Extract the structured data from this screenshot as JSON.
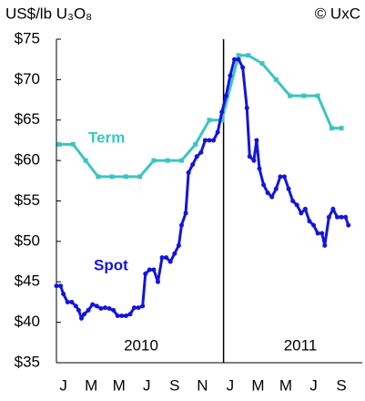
{
  "chart_data": {
    "type": "line",
    "y_label": "US$/lb U₃O₈",
    "source": "© UxC",
    "categories": [
      "J",
      null,
      "M",
      null,
      "M",
      null,
      "J",
      null,
      "S",
      null,
      "N",
      null,
      "J",
      null,
      "M",
      null,
      "M",
      null,
      "J",
      null,
      "S",
      null
    ],
    "years": [
      "2010",
      "2011"
    ],
    "xlim": [
      0,
      22
    ],
    "ylim": [
      35,
      75
    ],
    "yticks": [
      {
        "value": 35,
        "label": "$35"
      },
      {
        "value": 40,
        "label": "$40"
      },
      {
        "value": 45,
        "label": "$45"
      },
      {
        "value": 50,
        "label": "$50"
      },
      {
        "value": 55,
        "label": "$55"
      },
      {
        "value": 60,
        "label": "$60"
      },
      {
        "value": 65,
        "label": "$65"
      },
      {
        "value": 70,
        "label": "$70"
      },
      {
        "value": 75,
        "label": "$75"
      }
    ],
    "grid": false,
    "series": [
      {
        "name": "Term",
        "color": "#3cc4c4",
        "x": [
          0.2,
          1.2,
          2.1,
          3.0,
          4.0,
          5.0,
          6.0,
          7.0,
          8.0,
          9.0,
          10.0,
          11.0,
          11.9,
          13.1,
          13.8,
          14.8,
          15.8,
          16.8,
          17.8,
          18.8,
          19.8,
          20.5
        ],
        "values": [
          62,
          62,
          60,
          58,
          58,
          58,
          58,
          60,
          60,
          60,
          62,
          65,
          65,
          73,
          73,
          72,
          70,
          68,
          68,
          68,
          64,
          64
        ]
      },
      {
        "name": "Spot",
        "color": "#1414dc",
        "x": [
          0.0,
          0.3,
          0.5,
          0.8,
          1.1,
          1.4,
          1.6,
          1.8,
          2.0,
          2.3,
          2.6,
          2.9,
          3.2,
          3.5,
          3.8,
          4.1,
          4.4,
          4.7,
          5.0,
          5.3,
          5.6,
          5.9,
          6.2,
          6.4,
          6.7,
          7.0,
          7.3,
          7.6,
          7.9,
          8.2,
          8.5,
          8.8,
          9.0,
          9.3,
          9.5,
          9.8,
          10.1,
          10.4,
          10.7,
          11.0,
          11.3,
          11.6,
          11.9,
          12.2,
          12.5,
          12.8,
          13.1,
          13.4,
          13.7,
          13.9,
          14.2,
          14.4,
          14.6,
          14.9,
          15.2,
          15.5,
          15.8,
          16.1,
          16.4,
          16.7,
          17.0,
          17.3,
          17.6,
          17.9,
          18.2,
          18.5,
          18.8,
          19.1,
          19.3,
          19.6,
          19.9,
          20.2,
          20.5,
          20.8,
          21.0
        ],
        "values": [
          44.5,
          44.5,
          43.5,
          42.5,
          42.5,
          42,
          41.5,
          40.5,
          41,
          41.5,
          42.2,
          42,
          41.7,
          41.8,
          41.7,
          41.5,
          40.8,
          40.8,
          40.8,
          41,
          41.8,
          41.8,
          42,
          46,
          46.5,
          46.5,
          45,
          48,
          48,
          47.5,
          48.5,
          49.5,
          52,
          53.5,
          58.5,
          59.5,
          60.5,
          61,
          62.5,
          62.5,
          62.5,
          63.5,
          66,
          68,
          70.5,
          72.5,
          72.5,
          71.5,
          66.5,
          60.5,
          60,
          62.5,
          59,
          57,
          56,
          55.5,
          56.5,
          58,
          58,
          56.5,
          55,
          54.5,
          53.5,
          54,
          52.5,
          52,
          51,
          51,
          49.5,
          53,
          54,
          53,
          53,
          53,
          52
        ]
      }
    ]
  }
}
